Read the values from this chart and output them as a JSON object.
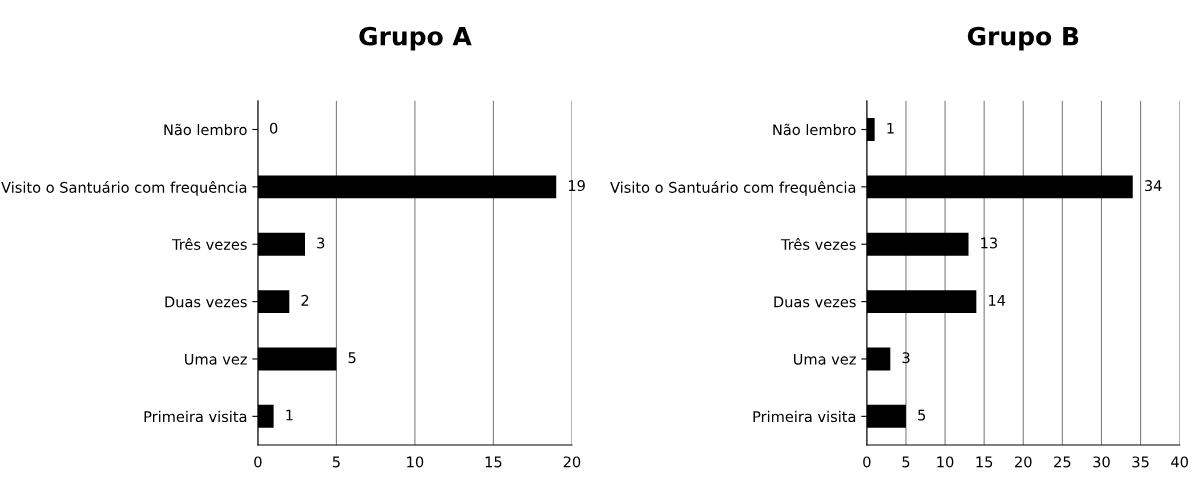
{
  "chart_data": [
    {
      "type": "bar",
      "orientation": "horizontal",
      "title": "Grupo A",
      "categories": [
        "Não lembro",
        "Visito o Santuário com frequência",
        "Três vezes",
        "Duas vezes",
        "Uma vez",
        "Primeira visita"
      ],
      "values": [
        0,
        19,
        3,
        2,
        5,
        1
      ],
      "color": "#000000",
      "xlim": [
        0,
        20
      ],
      "xticks": [
        0,
        5,
        10,
        15,
        20
      ],
      "grid": "x",
      "data_labels": true,
      "legend": false
    },
    {
      "type": "bar",
      "orientation": "horizontal",
      "title": "Grupo B",
      "categories": [
        "Não lembro",
        "Visito o Santuário com frequência",
        "Três vezes",
        "Duas vezes",
        "Uma vez",
        "Primeira visita"
      ],
      "values": [
        1,
        34,
        13,
        14,
        3,
        5
      ],
      "color": "#000000",
      "xlim": [
        0,
        40
      ],
      "xticks": [
        0,
        5,
        10,
        15,
        20,
        25,
        30,
        35,
        40
      ],
      "grid": "x",
      "data_labels": true,
      "legend": false
    }
  ]
}
